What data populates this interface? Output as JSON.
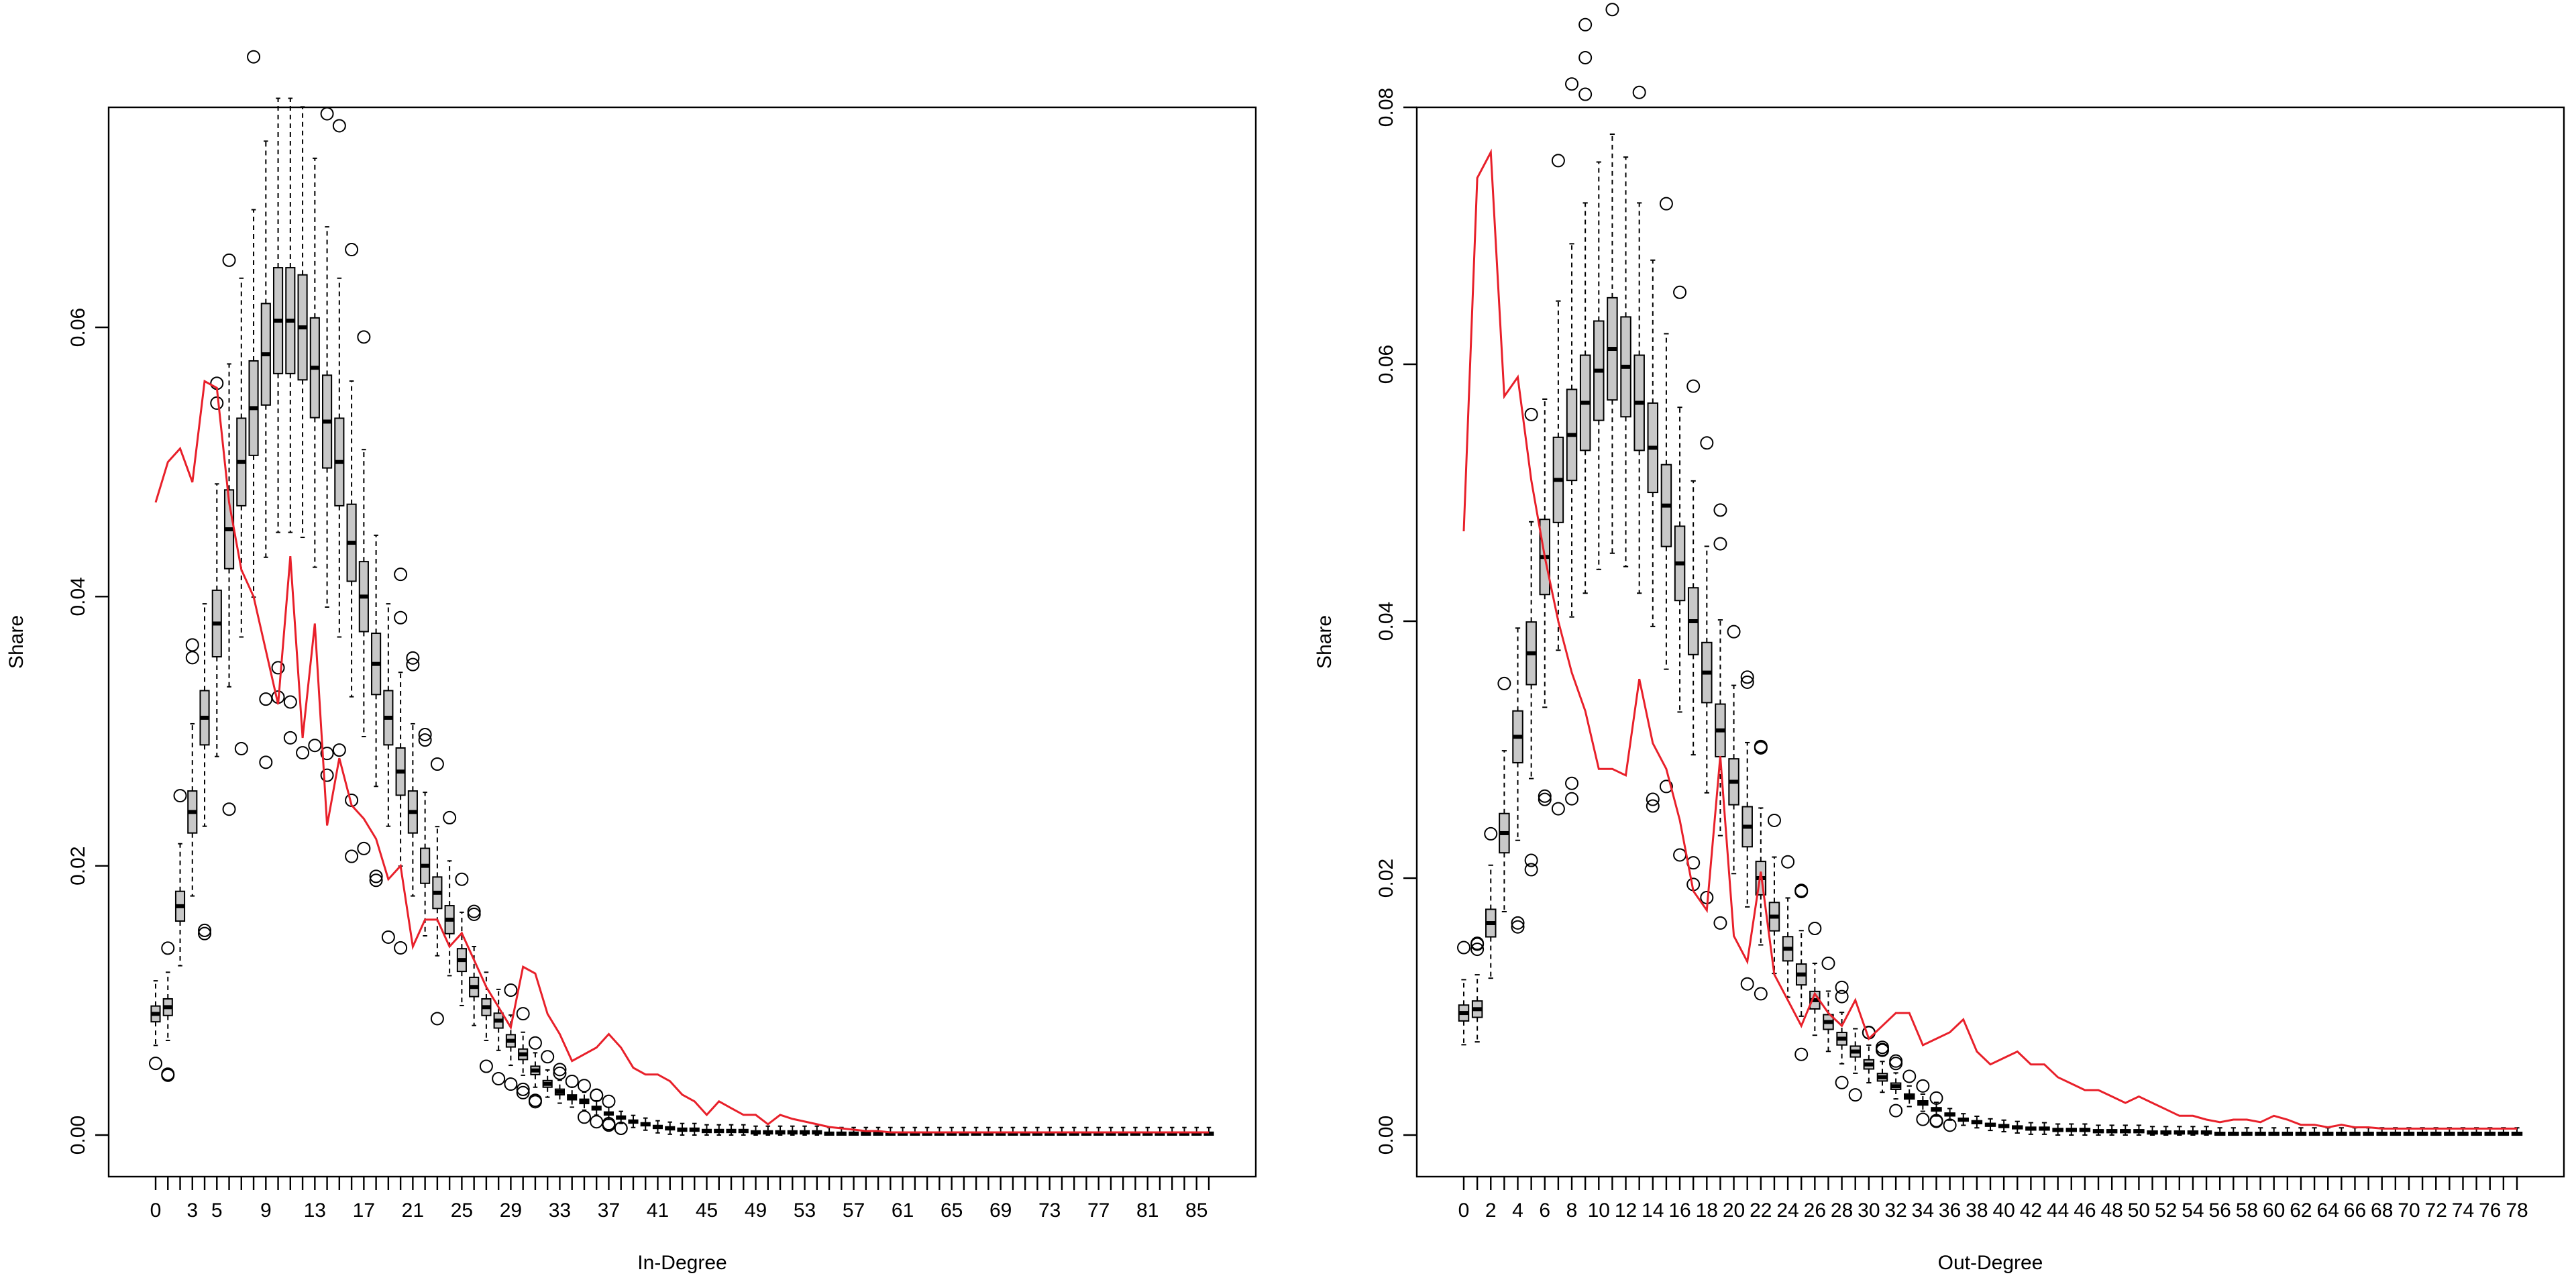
{
  "chart_data": [
    {
      "type": "boxplot",
      "xlabel": "In-Degree",
      "ylabel": "Share",
      "xlim": [
        0,
        87
      ],
      "ylim": [
        0,
        0.07
      ],
      "y_ticks": [
        "0.00",
        "0.02",
        "0.04",
        "0.06"
      ],
      "x_tick_labels": [
        "0",
        "3",
        "5",
        "9",
        "13",
        "17",
        "21",
        "25",
        "29",
        "33",
        "37",
        "41",
        "45",
        "49",
        "53",
        "57",
        "61",
        "65",
        "69",
        "73",
        "77",
        "81",
        "85"
      ],
      "grid": false,
      "box_color": "#c8c8c8",
      "line_color": "#e8202a",
      "medians": [
        0.009,
        0.0095,
        0.017,
        0.024,
        0.031,
        0.038,
        0.045,
        0.05,
        0.054,
        0.058,
        0.0605,
        0.0605,
        0.06,
        0.057,
        0.053,
        0.05,
        0.044,
        0.04,
        0.035,
        0.031,
        0.027,
        0.024,
        0.02,
        0.018,
        0.016,
        0.013,
        0.011,
        0.0095,
        0.0085,
        0.007,
        0.006,
        0.0048,
        0.0038,
        0.0032,
        0.0028,
        0.0025,
        0.002,
        0.0016,
        0.0013,
        0.001,
        0.0008,
        0.0006,
        0.0005,
        0.0004,
        0.0004,
        0.0003,
        0.0003,
        0.0003,
        0.0003,
        0.0002,
        0.0002,
        0.0002,
        0.0002,
        0.0002,
        0.0002,
        0.0001,
        0.0001,
        0.0001,
        0.0001,
        0.0001,
        0.0001,
        0.0001,
        0.0001,
        0.0001,
        0.0001,
        0.0001,
        0.0001,
        0.0001,
        0.0001,
        0.0001,
        0.0001,
        0.0001,
        0.0001,
        0.0001,
        0.0001,
        0.0001,
        0.0001,
        0.0001,
        0.0001,
        0.0001,
        0.0001,
        0.0001,
        0.0001,
        0.0001,
        0.0001,
        0.0001,
        0.0001
      ],
      "observed": [
        0.047,
        0.05,
        0.051,
        0.0485,
        0.056,
        0.0555,
        0.047,
        0.042,
        0.04,
        0.036,
        0.032,
        0.043,
        0.0295,
        0.038,
        0.023,
        0.028,
        0.0245,
        0.0235,
        0.022,
        0.019,
        0.02,
        0.014,
        0.016,
        0.016,
        0.014,
        0.015,
        0.013,
        0.011,
        0.0095,
        0.008,
        0.0125,
        0.012,
        0.009,
        0.0075,
        0.0055,
        0.006,
        0.0065,
        0.0075,
        0.0065,
        0.005,
        0.0045,
        0.0045,
        0.004,
        0.003,
        0.0025,
        0.0015,
        0.0025,
        0.002,
        0.0015,
        0.0015,
        0.0008,
        0.0015,
        0.0012,
        0.001,
        0.0008,
        0.0006,
        0.0005,
        0.0004,
        0.0003,
        0.0003,
        0.0002,
        0.0002,
        0.0002,
        0.0002,
        0.0002,
        0.0002,
        0.0002,
        0.0002,
        0.0002,
        0.0002,
        0.0002,
        0.0002,
        0.0002,
        0.0002,
        0.0002,
        0.0002,
        0.0002,
        0.0002,
        0.0002,
        0.0002,
        0.0002,
        0.0002,
        0.0002,
        0.0002,
        0.0002,
        0.0002,
        0.0002
      ]
    },
    {
      "type": "boxplot",
      "xlabel": "Out-Degree",
      "ylabel": "Share",
      "xlim": [
        0,
        79
      ],
      "ylim": [
        0,
        0.08
      ],
      "y_ticks": [
        "0.00",
        "0.02",
        "0.04",
        "0.06",
        "0.08"
      ],
      "x_tick_labels": [
        "0",
        "2",
        "4",
        "6",
        "8",
        "10",
        "12",
        "14",
        "16",
        "18",
        "20",
        "22",
        "24",
        "26",
        "28",
        "30",
        "32",
        "34",
        "36",
        "38",
        "40",
        "42",
        "44",
        "46",
        "48",
        "50",
        "52",
        "54",
        "56",
        "58",
        "60",
        "62",
        "64",
        "66",
        "68",
        "70",
        "72",
        "74",
        "76",
        "78"
      ],
      "grid": false,
      "box_color": "#c8c8c8",
      "line_color": "#e8202a",
      "medians": [
        0.0095,
        0.0098,
        0.0165,
        0.0235,
        0.031,
        0.0375,
        0.045,
        0.051,
        0.0545,
        0.057,
        0.0595,
        0.0612,
        0.0598,
        0.057,
        0.0535,
        0.049,
        0.0445,
        0.04,
        0.036,
        0.0315,
        0.0275,
        0.024,
        0.02,
        0.017,
        0.0145,
        0.0125,
        0.0105,
        0.0088,
        0.0075,
        0.0065,
        0.0055,
        0.0045,
        0.0038,
        0.003,
        0.0025,
        0.002,
        0.0016,
        0.0012,
        0.001,
        0.0008,
        0.0007,
        0.0006,
        0.0005,
        0.0005,
        0.0004,
        0.0004,
        0.0004,
        0.0003,
        0.0003,
        0.0003,
        0.0003,
        0.0002,
        0.0002,
        0.0002,
        0.0002,
        0.0002,
        0.0001,
        0.0001,
        0.0001,
        0.0001,
        0.0001,
        0.0001,
        0.0001,
        0.0001,
        0.0001,
        0.0001,
        0.0001,
        0.0001,
        0.0001,
        0.0001,
        0.0001,
        0.0001,
        0.0001,
        0.0001,
        0.0001,
        0.0001,
        0.0001,
        0.0001,
        0.0001
      ],
      "observed": [
        0.047,
        0.0745,
        0.0765,
        0.0575,
        0.059,
        0.051,
        0.045,
        0.04,
        0.036,
        0.033,
        0.0285,
        0.0285,
        0.028,
        0.0355,
        0.0305,
        0.0285,
        0.0245,
        0.019,
        0.0175,
        0.0295,
        0.0155,
        0.0135,
        0.0205,
        0.0125,
        0.0105,
        0.0085,
        0.011,
        0.0095,
        0.0085,
        0.0105,
        0.0075,
        0.0085,
        0.0095,
        0.0095,
        0.007,
        0.0075,
        0.008,
        0.009,
        0.0065,
        0.0055,
        0.006,
        0.0065,
        0.0055,
        0.0055,
        0.0045,
        0.004,
        0.0035,
        0.0035,
        0.003,
        0.0025,
        0.003,
        0.0025,
        0.002,
        0.0015,
        0.0015,
        0.0012,
        0.001,
        0.0012,
        0.0012,
        0.001,
        0.0015,
        0.0012,
        0.0008,
        0.0008,
        0.0006,
        0.0008,
        0.0006,
        0.0006,
        0.0005,
        0.0005,
        0.0005,
        0.0005,
        0.0005,
        0.0005,
        0.0005,
        0.0005,
        0.0005,
        0.0005,
        0.0005
      ]
    }
  ]
}
